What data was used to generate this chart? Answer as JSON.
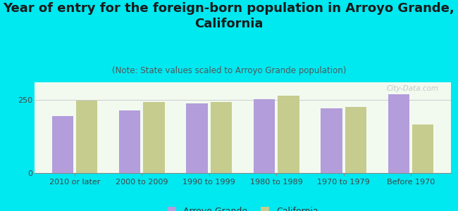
{
  "title": "Year of entry for the foreign-born population in Arroyo Grande,\nCalifornia",
  "subtitle": "(Note: State values scaled to Arroyo Grande population)",
  "categories": [
    "2010 or later",
    "2000 to 2009",
    "1990 to 1999",
    "1980 to 1989",
    "1970 to 1979",
    "Before 1970"
  ],
  "arroyo_grande": [
    195,
    215,
    237,
    252,
    220,
    268
  ],
  "california": [
    248,
    242,
    242,
    265,
    225,
    165
  ],
  "arroyo_color": "#b39ddb",
  "california_color": "#c5cc8e",
  "bg_outer": "#00e8f0",
  "ylim": [
    0,
    310
  ],
  "yticks": [
    0,
    250
  ],
  "watermark": "City-Data.com",
  "title_fontsize": 13,
  "subtitle_fontsize": 8.5,
  "tick_fontsize": 8,
  "legend_fontsize": 9
}
